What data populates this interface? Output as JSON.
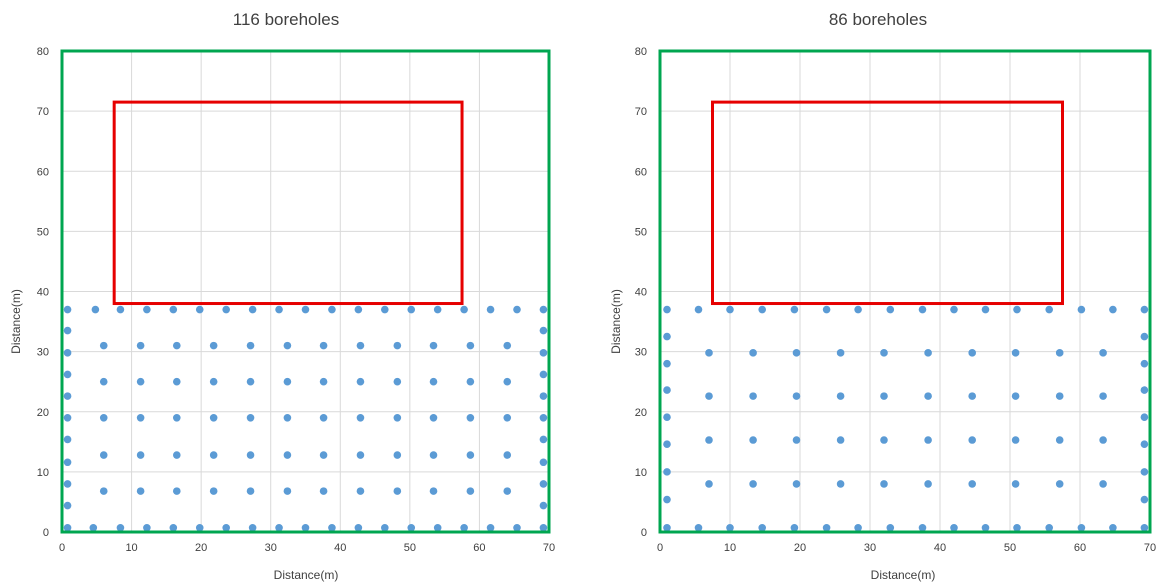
{
  "chart_data": [
    {
      "type": "scatter",
      "title": "116 boreholes",
      "xlabel": "Distance(m)",
      "ylabel": "Distance(m)",
      "xlim": [
        0,
        70
      ],
      "ylim": [
        0,
        80
      ],
      "xticks": [
        0,
        10,
        20,
        30,
        40,
        50,
        60,
        70
      ],
      "yticks": [
        0,
        10,
        20,
        30,
        40,
        50,
        60,
        70,
        80
      ],
      "grid": true,
      "colors": {
        "points": "#5b9bd5",
        "site": "#00a650",
        "building": "#e60000",
        "grid": "#d9d9d9"
      },
      "site_boundary": {
        "x": [
          0,
          70
        ],
        "y": [
          0,
          80
        ]
      },
      "building_outline": {
        "x": [
          7.5,
          57.5
        ],
        "y": [
          38,
          71.5
        ]
      },
      "series": [
        {
          "x": [
            0.8,
            4.8,
            8.4,
            12.2,
            16.0,
            19.8,
            23.6,
            27.4,
            31.2,
            35.0,
            38.8,
            42.6,
            46.4,
            50.2,
            54.0,
            57.8,
            61.6,
            65.4,
            69.2
          ],
          "y": 37
        },
        {
          "x": [
            0.8,
            0.8,
            0.8,
            0.8,
            0.8,
            0.8,
            0.8,
            0.8,
            0.8
          ],
          "y_list": [
            33.5,
            29.8,
            26.2,
            22.6,
            19.0,
            15.4,
            11.6,
            8.0,
            4.4
          ]
        },
        {
          "x": [
            69.2,
            69.2,
            69.2,
            69.2,
            69.2,
            69.2,
            69.2,
            69.2,
            69.2
          ],
          "y_list": [
            33.5,
            29.8,
            26.2,
            22.6,
            19.0,
            15.4,
            11.6,
            8.0,
            4.4
          ]
        },
        {
          "x": [
            6.0,
            11.3,
            16.5,
            21.8,
            27.1,
            32.4,
            37.6,
            42.9,
            48.2,
            53.4,
            58.7,
            64.0
          ],
          "y": 31
        },
        {
          "x": [
            6.0,
            11.3,
            16.5,
            21.8,
            27.1,
            32.4,
            37.6,
            42.9,
            48.2,
            53.4,
            58.7,
            64.0
          ],
          "y": 25
        },
        {
          "x": [
            6.0,
            11.3,
            16.5,
            21.8,
            27.1,
            32.4,
            37.6,
            42.9,
            48.2,
            53.4,
            58.7,
            64.0
          ],
          "y": 19
        },
        {
          "x": [
            6.0,
            11.3,
            16.5,
            21.8,
            27.1,
            32.4,
            37.6,
            42.9,
            48.2,
            53.4,
            58.7,
            64.0
          ],
          "y": 12.8
        },
        {
          "x": [
            6.0,
            11.3,
            16.5,
            21.8,
            27.1,
            32.4,
            37.6,
            42.9,
            48.2,
            53.4,
            58.7,
            64.0
          ],
          "y": 6.8
        },
        {
          "x": [
            0.8,
            4.5,
            8.4,
            12.2,
            16.0,
            19.8,
            23.6,
            27.4,
            31.2,
            35.0,
            38.8,
            42.6,
            46.4,
            50.2,
            54.0,
            57.8,
            61.6,
            65.4,
            69.2
          ],
          "y": 0.7
        }
      ]
    },
    {
      "type": "scatter",
      "title": "86 boreholes",
      "xlabel": "Distance(m)",
      "ylabel": "Distance(m)",
      "xlim": [
        0,
        70
      ],
      "ylim": [
        0,
        80
      ],
      "xticks": [
        0,
        10,
        20,
        30,
        40,
        50,
        60,
        70
      ],
      "yticks": [
        0,
        10,
        20,
        30,
        40,
        50,
        60,
        70,
        80
      ],
      "grid": true,
      "colors": {
        "points": "#5b9bd5",
        "site": "#00a650",
        "building": "#e60000",
        "grid": "#d9d9d9"
      },
      "site_boundary": {
        "x": [
          0,
          70
        ],
        "y": [
          0,
          80
        ]
      },
      "building_outline": {
        "x": [
          7.5,
          57.5
        ],
        "y": [
          38,
          71.5
        ]
      },
      "series": [
        {
          "x": [
            1.0,
            5.5,
            10.0,
            14.6,
            19.2,
            23.8,
            28.3,
            32.9,
            37.5,
            42.0,
            46.5,
            51.0,
            55.6,
            60.2,
            64.7,
            69.2
          ],
          "y": 37
        },
        {
          "x": [
            1.0,
            1.0,
            1.0,
            1.0,
            1.0,
            1.0,
            1.0,
            1.0
          ],
          "y_list": [
            32.5,
            28.0,
            23.6,
            19.1,
            14.6,
            10.0,
            5.4,
            0.7
          ]
        },
        {
          "x": [
            69.2,
            69.2,
            69.2,
            69.2,
            69.2,
            69.2,
            69.2,
            69.2
          ],
          "y_list": [
            32.5,
            28.0,
            23.6,
            19.1,
            14.6,
            10.0,
            5.4,
            0.7
          ]
        },
        {
          "x": [
            7.0,
            13.3,
            19.5,
            25.8,
            32.0,
            38.3,
            44.6,
            50.8,
            57.1,
            63.3
          ],
          "y": 29.8
        },
        {
          "x": [
            7.0,
            13.3,
            19.5,
            25.8,
            32.0,
            38.3,
            44.6,
            50.8,
            57.1,
            63.3
          ],
          "y": 22.6
        },
        {
          "x": [
            7.0,
            13.3,
            19.5,
            25.8,
            32.0,
            38.3,
            44.6,
            50.8,
            57.1,
            63.3
          ],
          "y": 15.3
        },
        {
          "x": [
            7.0,
            13.3,
            19.5,
            25.8,
            32.0,
            38.3,
            44.6,
            50.8,
            57.1,
            63.3
          ],
          "y": 8.0
        },
        {
          "x": [
            5.5,
            10.0,
            14.6,
            19.2,
            23.8,
            28.3,
            32.9,
            37.5,
            42.0,
            46.5,
            51.0,
            55.6,
            60.2,
            64.7
          ],
          "y": 0.7
        }
      ]
    }
  ]
}
